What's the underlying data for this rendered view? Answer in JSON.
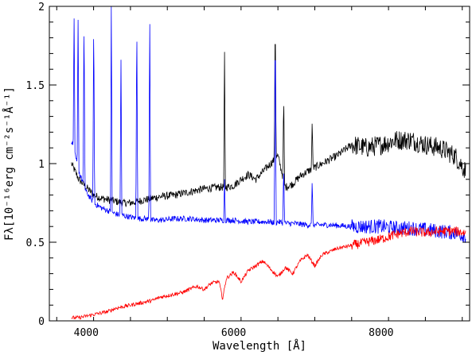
{
  "chart_data": {
    "type": "line",
    "xlabel": "Wavelength [Å]",
    "ylabel": "Fλ[10⁻¹⁶erg cm⁻²s⁻¹Å⁻¹]",
    "xlim": [
      3500,
      9200
    ],
    "ylim": [
      0,
      2
    ],
    "xticks": [
      4000,
      6000,
      8000
    ],
    "yticks": [
      0,
      0.5,
      1,
      1.5,
      2
    ],
    "ytick_labels": [
      "0",
      "0.5",
      "1",
      "1.5",
      "2"
    ],
    "xtick_labels": [
      "4000",
      "6000",
      "8000"
    ],
    "grid": false,
    "series": [
      {
        "color": "#0000ff",
        "x": [
          3800,
          3900,
          4000,
          4100,
          4200,
          4300,
          4400,
          4500,
          4600,
          4700,
          4800,
          4900,
          5000,
          5200,
          5400,
          5600,
          5800,
          6000,
          6200,
          6400,
          6500,
          6560,
          6600,
          6700,
          6800,
          7000,
          7100,
          7300,
          7600,
          7800,
          8000,
          8200,
          8400,
          8600,
          8800,
          9000,
          9150
        ],
        "y": [
          1.15,
          0.95,
          0.82,
          0.75,
          0.72,
          0.7,
          0.68,
          0.67,
          0.66,
          0.65,
          0.65,
          0.64,
          0.64,
          0.65,
          0.65,
          0.64,
          0.64,
          0.64,
          0.63,
          0.63,
          0.63,
          0.62,
          0.63,
          0.62,
          0.62,
          0.61,
          0.61,
          0.61,
          0.6,
          0.6,
          0.6,
          0.59,
          0.59,
          0.58,
          0.57,
          0.56,
          0.54
        ],
        "peaks": [
          {
            "x": 3835,
            "y": 2.0
          },
          {
            "x": 3889,
            "y": 2.0
          },
          {
            "x": 3970,
            "y": 2.0
          },
          {
            "x": 4102,
            "y": 2.0
          },
          {
            "x": 4340,
            "y": 2.0
          },
          {
            "x": 4471,
            "y": 1.75
          },
          {
            "x": 4686,
            "y": 2.0
          },
          {
            "x": 4861,
            "y": 2.0
          },
          {
            "x": 5876,
            "y": 0.9
          },
          {
            "x": 6563,
            "y": 2.0
          },
          {
            "x": 6678,
            "y": 1.0
          },
          {
            "x": 7065,
            "y": 0.9
          }
        ]
      },
      {
        "color": "#000000",
        "x": [
          3800,
          3900,
          4000,
          4100,
          4200,
          4300,
          4400,
          4500,
          4600,
          4700,
          4800,
          4900,
          5000,
          5200,
          5400,
          5500,
          5600,
          5800,
          5900,
          6000,
          6100,
          6200,
          6300,
          6400,
          6500,
          6600,
          6700,
          6800,
          6900,
          7000,
          7200,
          7400,
          7600,
          7800,
          8000,
          8200,
          8400,
          8600,
          8800,
          9000,
          9150
        ],
        "y": [
          1.0,
          0.9,
          0.85,
          0.8,
          0.78,
          0.77,
          0.76,
          0.75,
          0.75,
          0.76,
          0.77,
          0.78,
          0.79,
          0.8,
          0.82,
          0.83,
          0.84,
          0.85,
          0.85,
          0.86,
          0.9,
          0.93,
          0.9,
          0.95,
          1.0,
          1.05,
          0.85,
          0.87,
          0.92,
          0.95,
          1.0,
          1.05,
          1.12,
          1.1,
          1.12,
          1.15,
          1.15,
          1.12,
          1.1,
          1.05,
          0.95
        ],
        "peaks": [
          {
            "x": 5876,
            "y": 1.71
          },
          {
            "x": 6563,
            "y": 2.0
          },
          {
            "x": 6678,
            "y": 1.46
          },
          {
            "x": 7065,
            "y": 1.28
          }
        ]
      },
      {
        "color": "#ff0000",
        "x": [
          3800,
          3900,
          4000,
          4100,
          4200,
          4300,
          4400,
          4500,
          4600,
          4700,
          4800,
          4900,
          5000,
          5100,
          5200,
          5300,
          5400,
          5500,
          5600,
          5700,
          5800,
          5850,
          5900,
          6000,
          6100,
          6200,
          6300,
          6400,
          6500,
          6600,
          6700,
          6800,
          6900,
          7000,
          7100,
          7200,
          7400,
          7600,
          7800,
          8000,
          8200,
          8400,
          8600,
          8800,
          9000,
          9150
        ],
        "y": [
          0.02,
          0.02,
          0.03,
          0.04,
          0.05,
          0.06,
          0.08,
          0.09,
          0.1,
          0.11,
          0.12,
          0.13,
          0.15,
          0.16,
          0.17,
          0.18,
          0.2,
          0.22,
          0.2,
          0.24,
          0.25,
          0.14,
          0.27,
          0.31,
          0.25,
          0.32,
          0.35,
          0.38,
          0.33,
          0.28,
          0.34,
          0.3,
          0.38,
          0.42,
          0.35,
          0.42,
          0.46,
          0.48,
          0.5,
          0.52,
          0.55,
          0.57,
          0.56,
          0.57,
          0.57,
          0.56
        ]
      }
    ]
  }
}
